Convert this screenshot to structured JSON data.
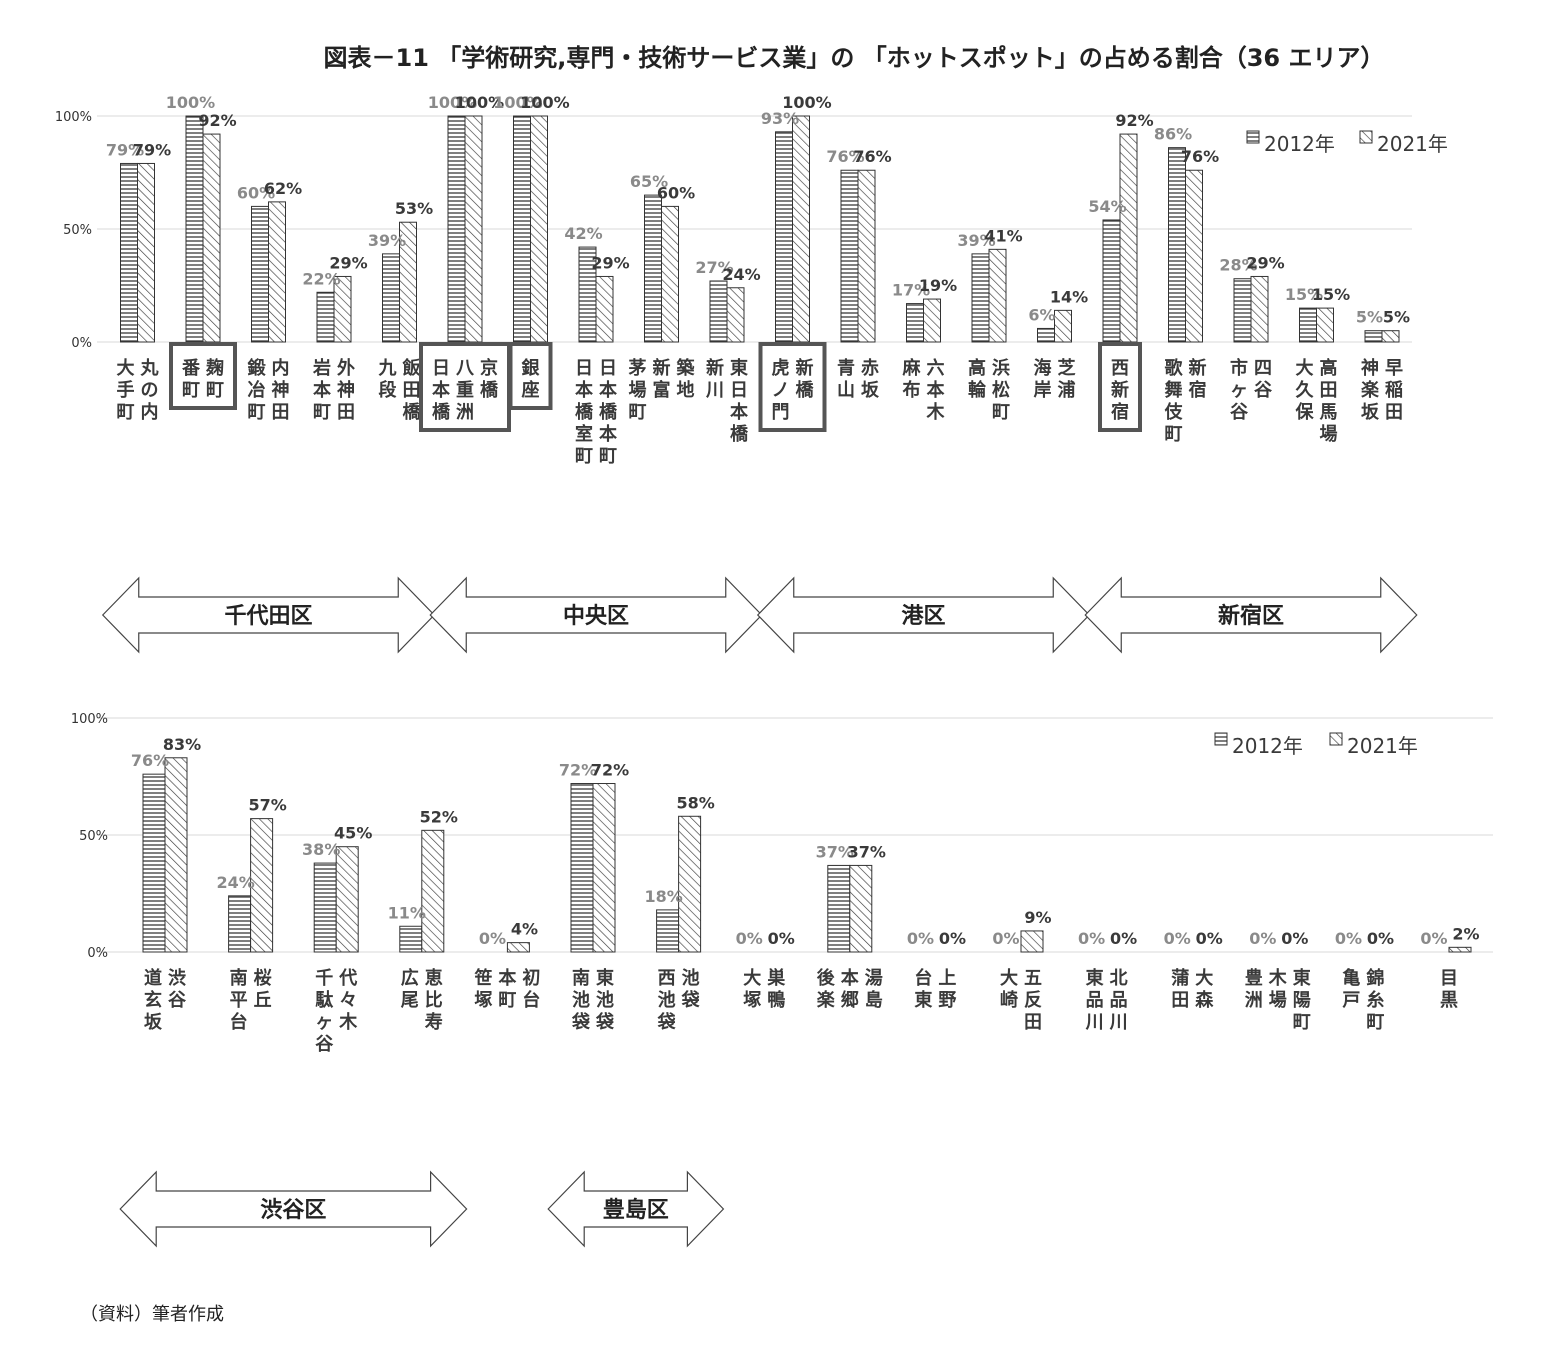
{
  "title": "図表－11 「学術研究,専門・技術サービス業」の 「ホットスポット」の占める割合（36 エリア）",
  "source": "（資料）筆者作成",
  "colors": {
    "text": "#3a3a3a",
    "value_2012": "#8a8a8a",
    "value_2021": "#3a3a3a",
    "highlight_box": "#555555",
    "grid": "#d9d9d9"
  },
  "chart_data": [
    {
      "type": "bar",
      "legend_position": "top-right",
      "grid": true,
      "ylim": [
        0,
        100
      ],
      "yticks": [
        "0%",
        "50%",
        "100%"
      ],
      "series_names": [
        "2012年",
        "2021年"
      ],
      "categories": [
        "丸の内・大手町",
        "麹町・番町",
        "内神田・鍛冶町",
        "外神田・岩本町",
        "飯田橋・九段",
        "京橋・八重洲・日本橋",
        "銀座",
        "日本橋本町・日本橋室町",
        "築地・新富・茅場町",
        "東日本橋・新川",
        "新橋・虎ノ門",
        "赤坂・青山",
        "六本木・麻布",
        "浜松町・高輪",
        "芝浦・海岸",
        "西新宿",
        "新宿・歌舞伎町",
        "四谷・市ヶ谷",
        "高田馬場・大久保",
        "早稲田・神楽坂"
      ],
      "series": [
        {
          "name": "2012年",
          "values": [
            79,
            100,
            60,
            22,
            39,
            100,
            100,
            42,
            65,
            27,
            93,
            76,
            17,
            39,
            6,
            54,
            86,
            28,
            15,
            5
          ]
        },
        {
          "name": "2021年",
          "values": [
            79,
            92,
            62,
            29,
            53,
            100,
            100,
            29,
            60,
            24,
            100,
            76,
            19,
            41,
            14,
            92,
            76,
            29,
            15,
            5
          ]
        }
      ],
      "labels_2012": [
        "79%",
        "100%",
        "60%",
        "22%",
        "39%",
        "100%",
        "100%",
        "42%",
        "65%",
        "27%",
        "93%",
        "76%",
        "17%",
        "39%",
        "6%",
        "54%",
        "86%",
        "28%",
        "15%",
        "5%"
      ],
      "labels_2021": [
        "79%",
        "92%",
        "62%",
        "29%",
        "53%",
        "100%",
        "100%",
        "29%",
        "60%",
        "24%",
        "100%",
        "76%",
        "19%",
        "41%",
        "14%",
        "92%",
        "76%",
        "29%",
        "15%",
        "5%"
      ],
      "highlighted": [
        "麹町・番町",
        "京橋・八重洲・日本橋",
        "銀座",
        "新橋・虎ノ門",
        "西新宿"
      ],
      "ward_groups": [
        {
          "label": "千代田区",
          "first": 0,
          "last": 4
        },
        {
          "label": "中央区",
          "first": 5,
          "last": 9
        },
        {
          "label": "港区",
          "first": 10,
          "last": 14
        },
        {
          "label": "新宿区",
          "first": 15,
          "last": 19
        }
      ]
    },
    {
      "type": "bar",
      "legend_position": "top-right",
      "grid": true,
      "ylim": [
        0,
        100
      ],
      "yticks": [
        "0%",
        "50%",
        "100%"
      ],
      "series_names": [
        "2012年",
        "2021年"
      ],
      "categories": [
        "渋谷・道玄坂",
        "桜丘・南平台",
        "代々木・千駄ヶ谷",
        "恵比寿・広尾",
        "初台・本町・笹塚",
        "東池袋・南池袋",
        "池袋・西池袋",
        "巣鴨・大塚",
        "湯島・本郷・後楽",
        "上野・台東",
        "五反田・大崎",
        "北品川・東品川",
        "大森・蒲田",
        "東陽町・木場・豊洲",
        "錦糸町・亀戸",
        "目黒"
      ],
      "series": [
        {
          "name": "2012年",
          "values": [
            76,
            24,
            38,
            11,
            0,
            72,
            18,
            0,
            37,
            0,
            0,
            0,
            0,
            0,
            0,
            0
          ]
        },
        {
          "name": "2021年",
          "values": [
            83,
            57,
            45,
            52,
            4,
            72,
            58,
            0,
            37,
            0,
            9,
            0,
            0,
            0,
            0,
            2
          ]
        }
      ],
      "labels_2012": [
        "76%",
        "24%",
        "38%",
        "11%",
        "0%",
        "72%",
        "18%",
        "0%",
        "37%",
        "0%",
        "0%",
        "0%",
        "0%",
        "0%",
        "0%",
        "0%"
      ],
      "labels_2021": [
        "83%",
        "57%",
        "45%",
        "52%",
        "4%",
        "72%",
        "58%",
        "0%",
        "37%",
        "0%",
        "9%",
        "0%",
        "0%",
        "0%",
        "0%",
        "2%"
      ],
      "highlighted": [],
      "ward_groups": [
        {
          "label": "渋谷区",
          "first": 0,
          "last": 3
        },
        {
          "label": "豊島区",
          "first": 5,
          "last": 6
        }
      ]
    }
  ]
}
